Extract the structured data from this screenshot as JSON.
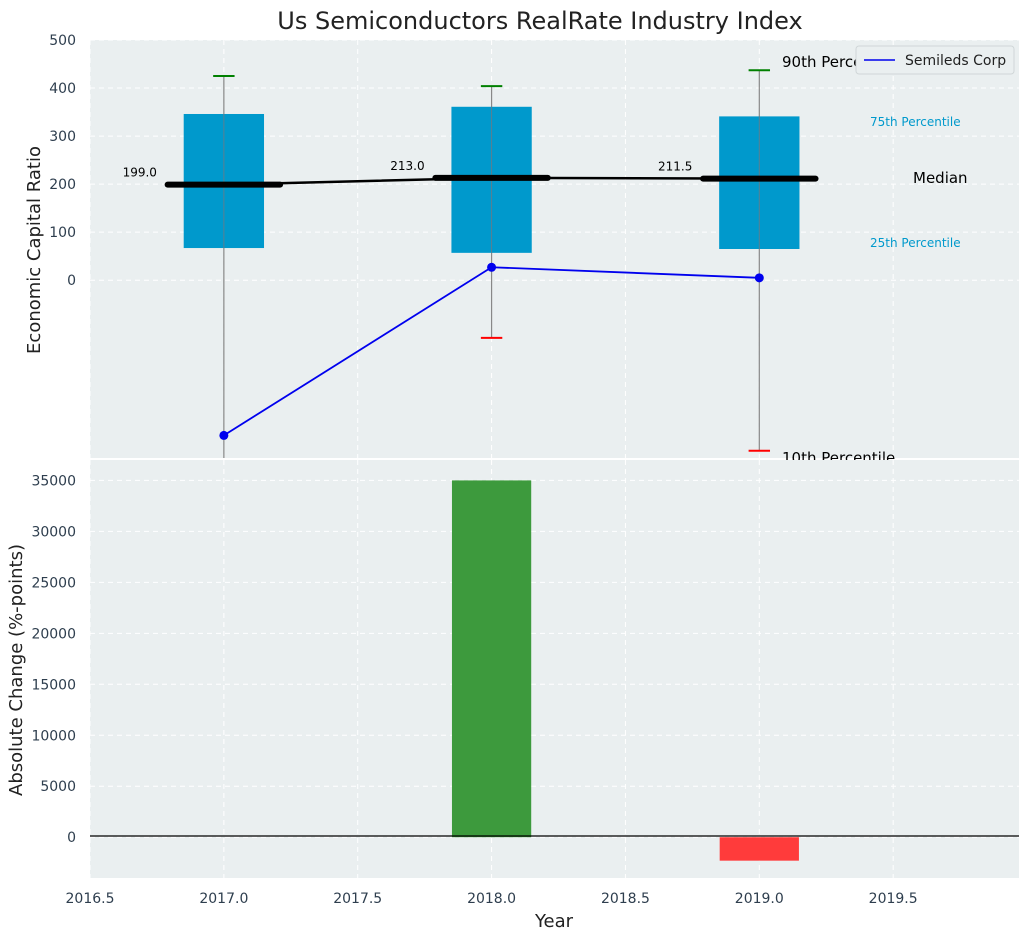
{
  "chart_data": [
    {
      "type": "box",
      "title": "Us Semiconductors RealRate Industry Index",
      "xlabel": "",
      "ylabel": "Economic Capital Ratio",
      "ylim": [
        -370,
        500
      ],
      "yticks": [
        0,
        100,
        200,
        300,
        400,
        500
      ],
      "years": [
        2017,
        2018,
        2019
      ],
      "boxes": [
        {
          "year": 2017,
          "p10": null,
          "p25": 67,
          "median": 199.0,
          "p75": 346,
          "p90": 425
        },
        {
          "year": 2018,
          "p10": -120,
          "p25": 57,
          "median": 213.0,
          "p75": 361,
          "p90": 404
        },
        {
          "year": 2019,
          "p10": -355,
          "p25": 65,
          "median": 211.5,
          "p75": 341,
          "p90": 437
        }
      ],
      "median_labels": [
        "199.0",
        "213.0",
        "211.5"
      ],
      "series": [
        {
          "name": "Semileds Corp",
          "x": [
            2017,
            2018,
            2019
          ],
          "values": [
            -323,
            27,
            5
          ],
          "color": "#0000ee"
        }
      ],
      "annotations": {
        "p90": "90th Percentile",
        "p75": "75th Percentile",
        "median": "Median",
        "p25": "25th Percentile",
        "p10": "10th Percentile"
      },
      "legend": {
        "position": "top-right",
        "entries": [
          "Semileds Corp"
        ]
      },
      "colors": {
        "box": "#0099cc",
        "median": "#000000",
        "whisker_top": "#008000",
        "whisker_bottom": "#ff0000",
        "annotation_box": "#0099cc"
      }
    },
    {
      "type": "bar",
      "xlabel": "Year",
      "ylabel": "Absolute Change (%-points)",
      "ylim": [
        -4000,
        37000
      ],
      "yticks": [
        0,
        5000,
        10000,
        15000,
        20000,
        25000,
        30000,
        35000
      ],
      "x": [
        2018,
        2019
      ],
      "values": [
        35000,
        -2300
      ],
      "colors": [
        "#3d9a3d",
        "#ff3b3b"
      ],
      "xlim": [
        2016.5,
        2019.97
      ],
      "xticks": [
        "2016.5",
        "2017.0",
        "2017.5",
        "2018.0",
        "2018.5",
        "2019.0",
        "2019.5"
      ]
    }
  ]
}
